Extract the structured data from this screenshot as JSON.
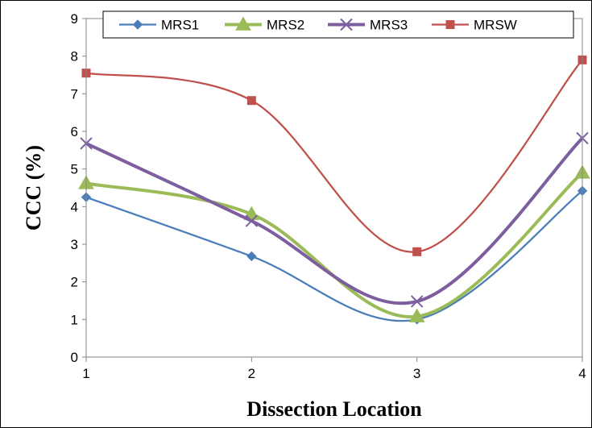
{
  "chart_data": {
    "type": "line",
    "x": [
      1,
      2,
      3,
      4
    ],
    "xticks": [
      "1",
      "2",
      "3",
      "4"
    ],
    "yticks": [
      "0",
      "1",
      "2",
      "3",
      "4",
      "5",
      "6",
      "7",
      "8",
      "9"
    ],
    "xlim": [
      1,
      4
    ],
    "ylim": [
      0,
      9
    ],
    "xlabel": "Dissection Location",
    "ylabel": "CCC (%)",
    "grid": false,
    "legend_position": "top",
    "smooth": true,
    "series": [
      {
        "name": "MRS1",
        "values": [
          4.25,
          2.68,
          1.0,
          4.42
        ],
        "color": "#4a7ebb",
        "marker": "diamond"
      },
      {
        "name": "MRS2",
        "values": [
          4.62,
          3.8,
          1.08,
          4.9
        ],
        "color": "#9bbb59",
        "marker": "triangle"
      },
      {
        "name": "MRS3",
        "values": [
          5.68,
          3.62,
          1.48,
          5.82
        ],
        "color": "#7d5fa0",
        "marker": "x"
      },
      {
        "name": "MRSW",
        "values": [
          7.55,
          6.82,
          2.8,
          7.9
        ],
        "color": "#c0504d",
        "marker": "square"
      }
    ]
  }
}
